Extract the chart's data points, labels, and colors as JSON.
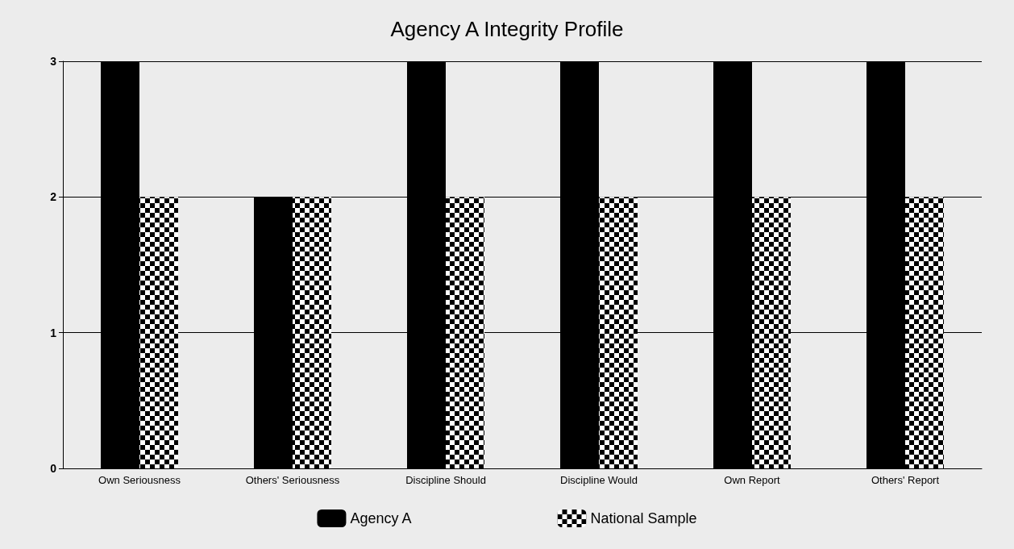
{
  "chart_data": {
    "type": "bar",
    "title": "Agency A Integrity Profile",
    "categories": [
      "Own Seriousness",
      "Others' Seriousness",
      "Discipline Should",
      "Discipline Would",
      "Own Report",
      "Others' Report"
    ],
    "series": [
      {
        "name": "Agency A",
        "color": "#000000",
        "values": [
          3,
          2,
          3,
          3,
          3,
          3
        ]
      },
      {
        "name": "National Sample",
        "color": "#ffffff",
        "values": [
          2,
          2,
          2,
          2,
          2,
          2
        ]
      }
    ],
    "ylim": [
      0,
      3
    ],
    "yticks": [
      0,
      1,
      2,
      3
    ],
    "grid": "y",
    "legend": "bottom"
  }
}
